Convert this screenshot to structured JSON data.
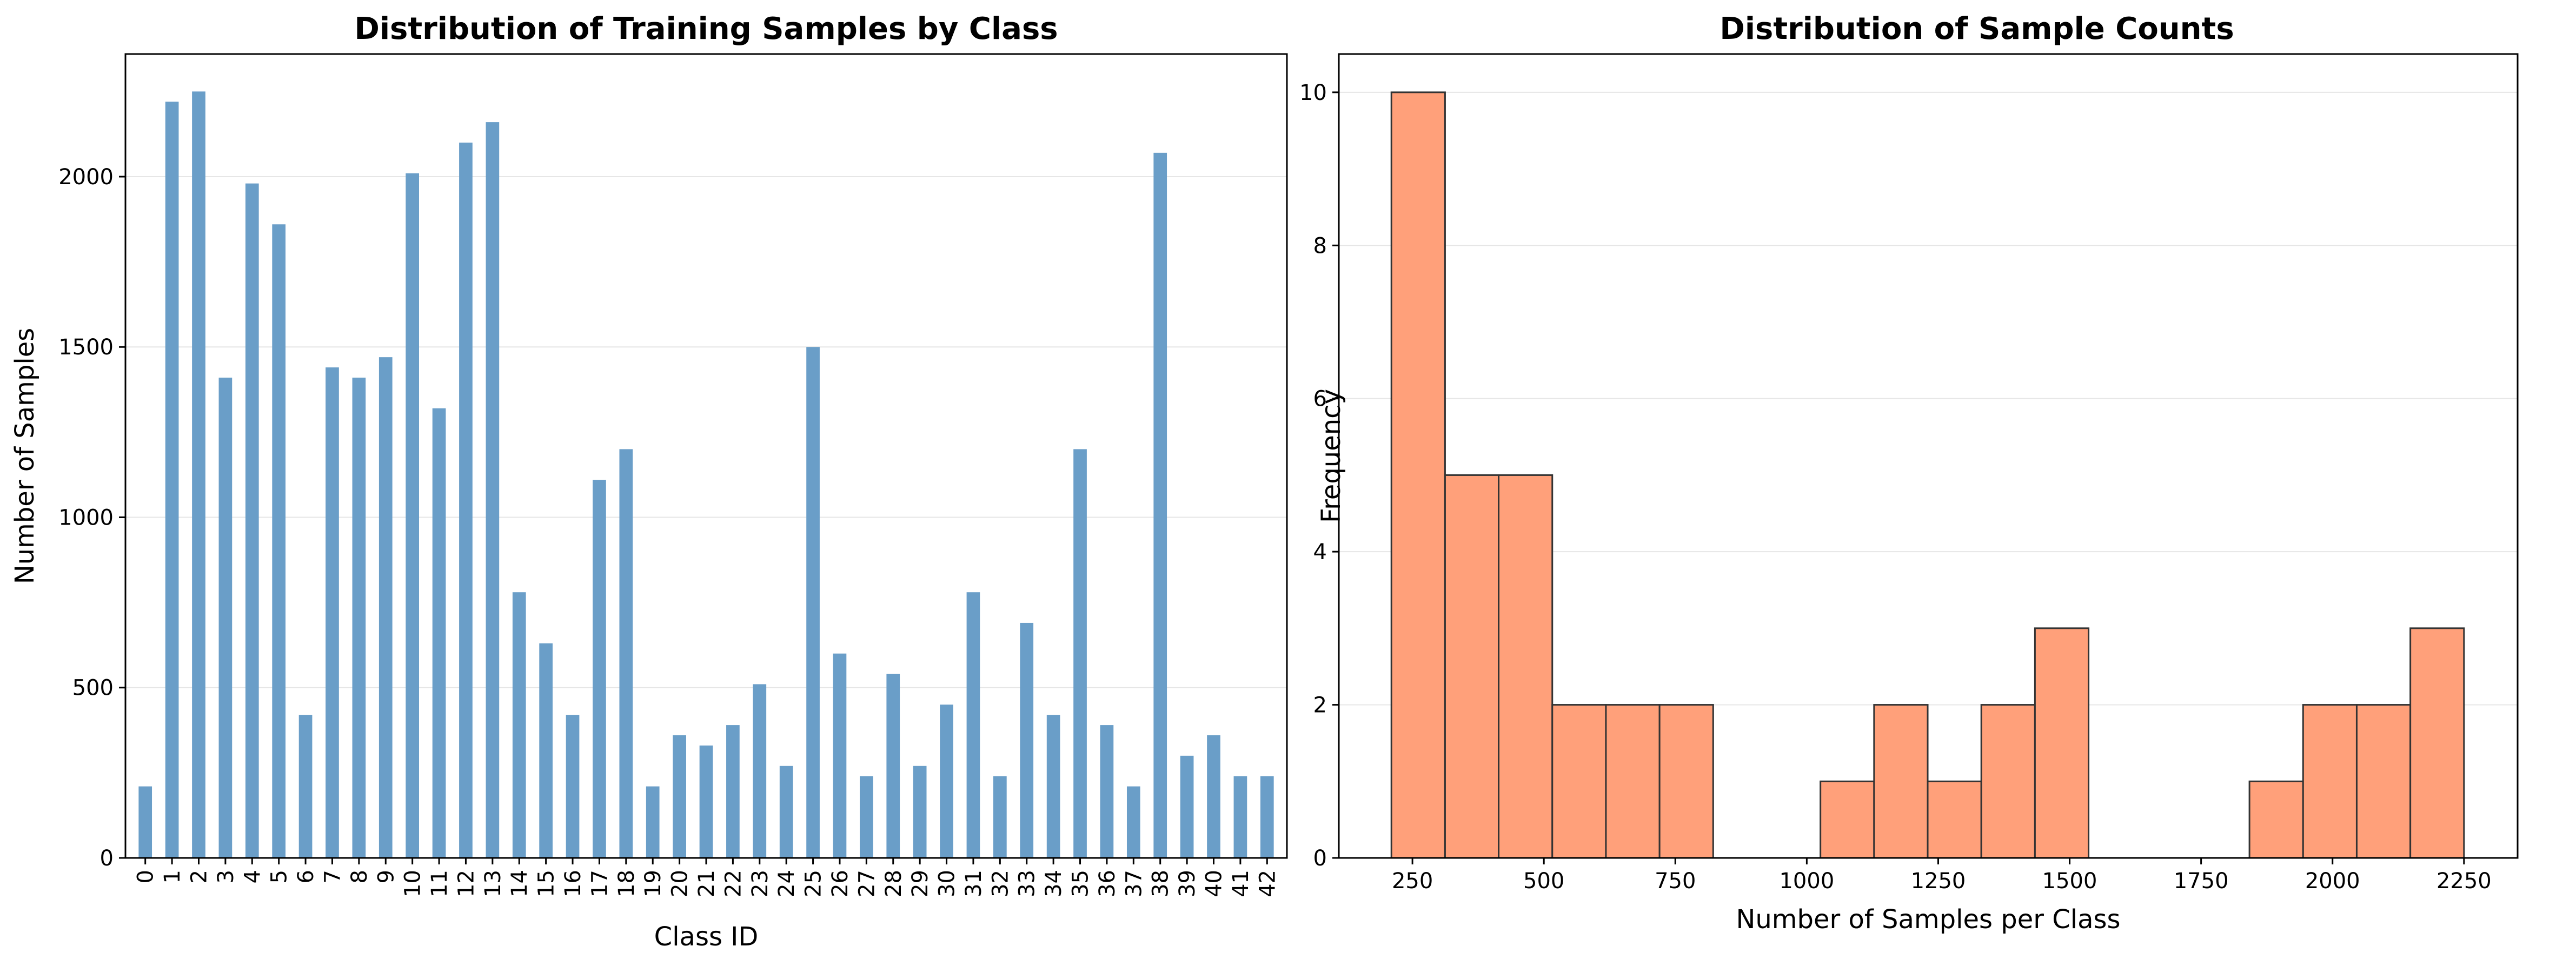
{
  "chart_data": [
    {
      "type": "bar",
      "title": "Distribution of Training Samples by Class",
      "xlabel": "Class ID",
      "ylabel": "Number of Samples",
      "ylim": [
        0,
        2360
      ],
      "yticks": [
        0,
        500,
        1000,
        1500,
        2000
      ],
      "grid": "y",
      "bar_color": "#6a9ec8",
      "categories": [
        "0",
        "1",
        "2",
        "3",
        "4",
        "5",
        "6",
        "7",
        "8",
        "9",
        "10",
        "11",
        "12",
        "13",
        "14",
        "15",
        "16",
        "17",
        "18",
        "19",
        "20",
        "21",
        "22",
        "23",
        "24",
        "25",
        "26",
        "27",
        "28",
        "29",
        "30",
        "31",
        "32",
        "33",
        "34",
        "35",
        "36",
        "37",
        "38",
        "39",
        "40",
        "41",
        "42"
      ],
      "values": [
        210,
        2220,
        2250,
        1410,
        1980,
        1860,
        420,
        1440,
        1410,
        1470,
        2010,
        1320,
        2100,
        2160,
        780,
        630,
        420,
        1110,
        1200,
        210,
        360,
        330,
        390,
        510,
        270,
        1500,
        600,
        240,
        540,
        270,
        450,
        780,
        240,
        690,
        420,
        1200,
        390,
        210,
        2070,
        300,
        360,
        240,
        240
      ]
    },
    {
      "type": "bar",
      "subtype": "histogram",
      "title": "Distribution of Sample Counts",
      "xlabel": "Number of Samples per Class",
      "ylabel": "Frequency",
      "xlim": [
        110,
        2352
      ],
      "ylim": [
        0,
        10.5
      ],
      "xticks": [
        250,
        500,
        750,
        1000,
        1250,
        1500,
        1750,
        2000,
        2250
      ],
      "yticks": [
        0,
        2,
        4,
        6,
        8,
        10
      ],
      "grid": "y",
      "bar_color": "#ffa07a",
      "edge_color": "#333333",
      "bin_range": [
        210,
        2250
      ],
      "counts": [
        10,
        5,
        5,
        2,
        2,
        2,
        0,
        0,
        1,
        2,
        1,
        2,
        3,
        0,
        0,
        0,
        1,
        2,
        2,
        3
      ]
    }
  ]
}
